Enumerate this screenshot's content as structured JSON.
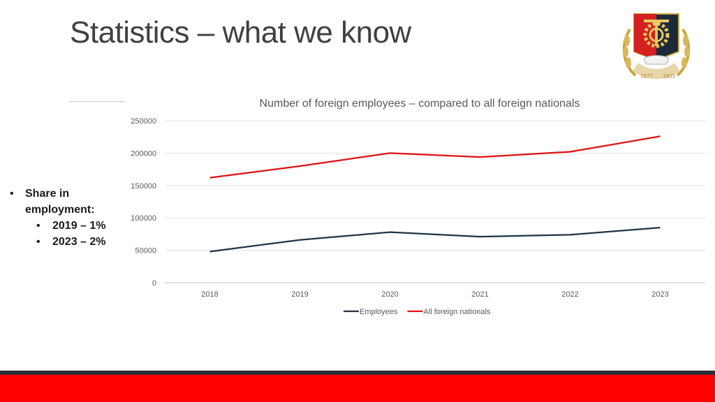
{
  "slide": {
    "title": "Statistics – what we know"
  },
  "bullets": {
    "main": "Share in employment:",
    "sub": [
      "2019 – 1%",
      "2023 – 2%"
    ]
  },
  "logo": {
    "year_left": "1877",
    "year_right": "1903",
    "colors": [
      "#1c2a3a",
      "#d42020",
      "#c9a640"
    ]
  },
  "chart_data": {
    "type": "line",
    "title": "Number of foreign employees – compared to all foreign nationals",
    "categories": [
      "2018",
      "2019",
      "2020",
      "2021",
      "2022",
      "2023"
    ],
    "y_ticks": [
      "0",
      "50000",
      "100000",
      "150000",
      "200000",
      "250000"
    ],
    "ylim": [
      0,
      250000
    ],
    "grid": true,
    "legend": "bottom",
    "series": [
      {
        "name": "Employees",
        "color": "#1f3447",
        "values": [
          48000,
          66000,
          78000,
          71000,
          74000,
          85000
        ]
      },
      {
        "name": "All foreign nationals",
        "color": "#e01010",
        "values": [
          162000,
          180000,
          200000,
          194000,
          202000,
          226000
        ]
      }
    ]
  },
  "footer": {
    "dark": "#2b2f36",
    "red": "#ff0000"
  }
}
